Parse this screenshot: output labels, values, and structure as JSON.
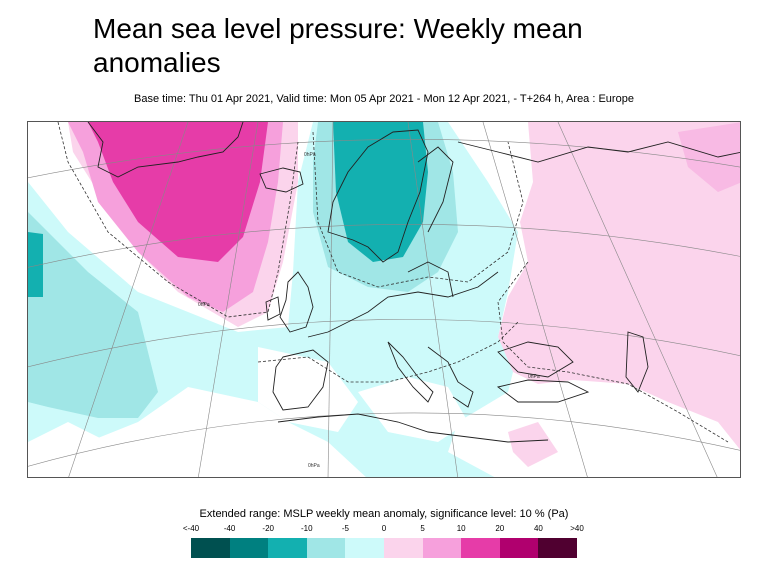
{
  "title": "Mean sea level pressure: Weekly mean anomalies",
  "subtitle": "Base time: Thu 01 Apr 2021, Valid time: Mon 05 Apr 2021 - Mon 12 Apr 2021, - T+264 h, Area : Europe",
  "map": {
    "area": "Europe",
    "contour_labels": [
      "0hPa",
      "0hPa",
      "0hPa",
      "0hPa"
    ]
  },
  "legend": {
    "title": "Extended range: MSLP weekly mean anomaly, significance level: 10 % (Pa)",
    "ticks": [
      "<-40",
      "-40",
      "-20",
      "-10",
      "-5",
      "0",
      "5",
      "10",
      "20",
      "40",
      ">40"
    ],
    "colors": [
      "#005050",
      "#008080",
      "#13b0b0",
      "#a0e6e6",
      "#cdfafa",
      "#fbd4ec",
      "#f6a0dc",
      "#e63ca8",
      "#b0006e",
      "#500030"
    ]
  }
}
